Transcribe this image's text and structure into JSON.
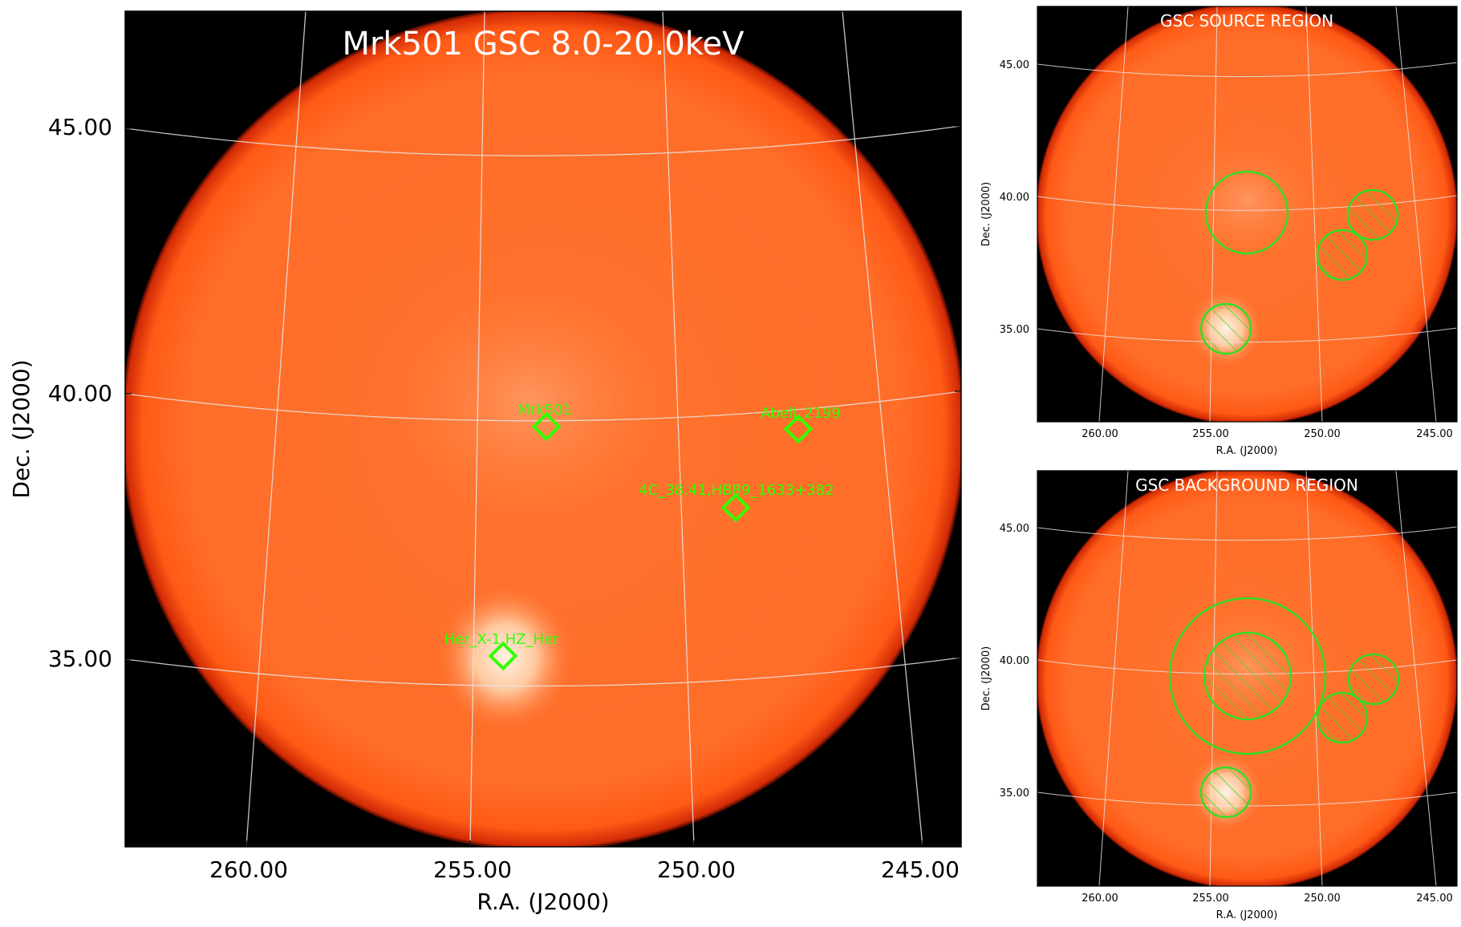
{
  "main_panel": {
    "title": "Mrk501 GSC 8.0-20.0keV",
    "xlabel": "R.A. (J2000)",
    "ylabel": "Dec. (J2000)",
    "xticks": [
      "260.00",
      "255.00",
      "250.00",
      "245.00"
    ],
    "yticks": [
      "45.00",
      "40.00",
      "35.00"
    ],
    "sources": [
      {
        "label": "Mrk501"
      },
      {
        "label": "Abell_2199"
      },
      {
        "label": "4C_38.41,HB89_1633+382"
      },
      {
        "label": "Her_X-1,HZ_Her"
      }
    ]
  },
  "source_panel": {
    "title": "GSC SOURCE REGION",
    "xlabel": "R.A. (J2000)",
    "ylabel": "Dec. (J2000)",
    "xticks": [
      "260.00",
      "255.00",
      "250.00",
      "245.00"
    ],
    "yticks": [
      "45.00",
      "40.00",
      "35.00"
    ]
  },
  "background_panel": {
    "title": "GSC BACKGROUND REGION",
    "xlabel": "R.A. (J2000)",
    "ylabel": "Dec. (J2000)",
    "xticks": [
      "260.00",
      "255.00",
      "250.00",
      "245.00"
    ],
    "yticks": [
      "45.00",
      "40.00",
      "35.00"
    ]
  },
  "colors": {
    "region_green": "#33dd22",
    "label_green": "#33ff00",
    "image_orange": "#ff6a1a"
  }
}
